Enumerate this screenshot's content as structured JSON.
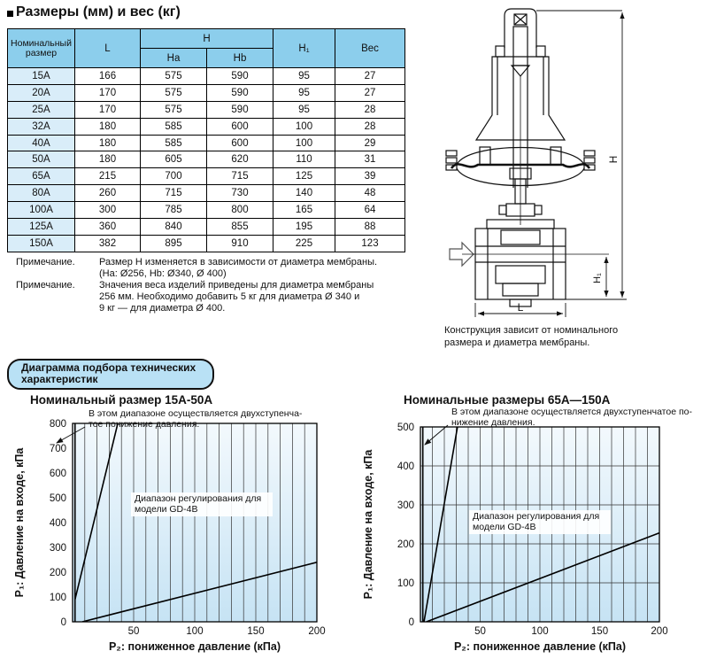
{
  "page": {
    "title": "Размеры (мм) и вес (кг)"
  },
  "dimensions_table": {
    "headers": {
      "size": "Номинальный размер",
      "L": "L",
      "H": "H",
      "Ha": "Ha",
      "Hb": "Hb",
      "H1": "H₁",
      "weight": "Вес"
    },
    "rows": [
      [
        "15A",
        "166",
        "575",
        "590",
        "95",
        "27"
      ],
      [
        "20A",
        "170",
        "575",
        "590",
        "95",
        "27"
      ],
      [
        "25A",
        "170",
        "575",
        "590",
        "95",
        "28"
      ],
      [
        "32A",
        "180",
        "585",
        "600",
        "100",
        "28"
      ],
      [
        "40A",
        "180",
        "585",
        "600",
        "100",
        "29"
      ],
      [
        "50A",
        "180",
        "605",
        "620",
        "110",
        "31"
      ],
      [
        "65A",
        "215",
        "700",
        "715",
        "125",
        "39"
      ],
      [
        "80A",
        "260",
        "715",
        "730",
        "140",
        "48"
      ],
      [
        "100A",
        "300",
        "785",
        "800",
        "165",
        "64"
      ],
      [
        "125A",
        "360",
        "840",
        "855",
        "195",
        "88"
      ],
      [
        "150A",
        "382",
        "895",
        "910",
        "225",
        "123"
      ]
    ]
  },
  "notes": [
    {
      "label": "Примечание.",
      "text": "Размер H изменяется в зависимости от диаметра мембраны.\n(Ha: Ø256, Hb: Ø340, Ø 400)"
    },
    {
      "label": "Примечание.",
      "text": "Значения веса изделий приведены для диаметра мембраны\n256 мм. Необходимо добавить 5 кг для диаметра Ø 340 и\n9 кг — для диаметра Ø 400."
    }
  ],
  "drawing": {
    "caption": "Конструкция зависит от номинального\nразмера и диаметра мембраны.",
    "dim_labels": {
      "H": "H",
      "H1": "H₁",
      "L": "L"
    }
  },
  "section": {
    "header": "Диаграмма подбора технических характеристик"
  },
  "chart_data": [
    {
      "type": "line",
      "title": "Номинальный размер 15А-50А",
      "annotation_lines": [
        "В этом диапазоне осуществляется двухступенча-",
        "тое понижение давления."
      ],
      "region_label_lines": [
        "Диапазон регулирования для",
        "модели GD-4B"
      ],
      "xlabel": "P₂: пониженное давление (кПа)",
      "ylabel": "P₁: Давление на входе, кПа",
      "xlim": [
        0,
        200
      ],
      "ylim": [
        0,
        800
      ],
      "x_ticks": [
        50,
        100,
        150,
        200
      ],
      "y_ticks": [
        0,
        100,
        200,
        300,
        400,
        500,
        600,
        700,
        800
      ],
      "x_grid_step": 10,
      "y_gridlines": [],
      "series": [
        {
          "name": "min-p2-boundary",
          "points": [
            [
              2,
              0
            ],
            [
              2,
              800
            ]
          ]
        },
        {
          "name": "two-stage-reduction-boundary",
          "points": [
            [
              2,
              90
            ],
            [
              37,
              800
            ]
          ]
        },
        {
          "name": "max-p2-boundary",
          "points": [
            [
              8,
              0
            ],
            [
              200,
              240
            ]
          ]
        }
      ]
    },
    {
      "type": "line",
      "title": "Номинальные размеры 65А—150А",
      "annotation_lines": [
        "В этом диапазоне осуществляется двухступенчатое по-",
        "нижение давления."
      ],
      "region_label_lines": [
        "Диапазон регулирования для",
        "модели GD-4B"
      ],
      "xlabel": "P₂: пониженное давление (кПа)",
      "ylabel": "P₁: Давление на входе, кПа",
      "xlim": [
        0,
        200
      ],
      "ylim": [
        0,
        500
      ],
      "x_ticks": [
        50,
        100,
        150,
        200
      ],
      "y_ticks": [
        0,
        100,
        200,
        300,
        400,
        500
      ],
      "x_grid_step": 10,
      "y_gridlines": [
        100,
        200,
        300,
        400
      ],
      "series": [
        {
          "name": "min-p2-boundary",
          "points": [
            [
              2,
              0
            ],
            [
              2,
              500
            ]
          ]
        },
        {
          "name": "two-stage-reduction-boundary",
          "points": [
            [
              3,
              0
            ],
            [
              31,
              500
            ]
          ]
        },
        {
          "name": "max-p2-boundary",
          "points": [
            [
              5,
              0
            ],
            [
              200,
              228
            ]
          ]
        }
      ]
    }
  ],
  "colors": {
    "table_header_bg": "#8cceec",
    "table_rowhead_bg": "#d9edf9",
    "pill_bg": "#b9e1f5",
    "chart_bg_top": "#f3f9fd",
    "chart_bg_bottom": "#c6e3f4",
    "line": "#000000"
  }
}
